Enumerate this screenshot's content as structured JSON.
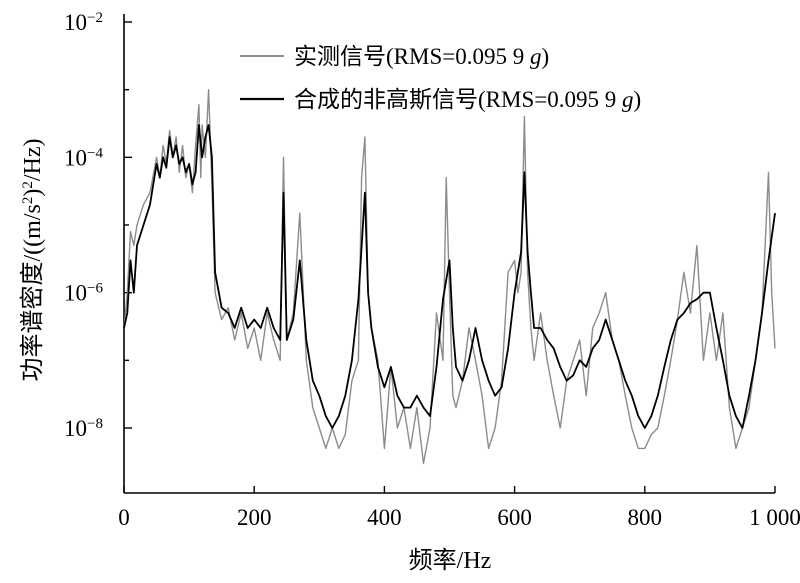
{
  "chart_data": {
    "type": "line",
    "xlabel": "频率/Hz",
    "ylabel": "功率谱密度/((m/s²)²/Hz)",
    "ylabel_parts": {
      "prefix": "功率谱密度/((m/s",
      "sup1": "2",
      "mid": ")",
      "sup2": "2",
      "suffix": "/Hz)"
    },
    "xlim": [
      0,
      1000
    ],
    "ylim": [
      1e-09,
      0.01
    ],
    "yscale": "log",
    "grid": false,
    "legend_position": "top-right",
    "x_ticks": [
      {
        "value": 0,
        "label": "0"
      },
      {
        "value": 200,
        "label": "200"
      },
      {
        "value": 400,
        "label": "400"
      },
      {
        "value": 600,
        "label": "600"
      },
      {
        "value": 800,
        "label": "800"
      },
      {
        "value": 1000,
        "label": "1 000"
      }
    ],
    "y_ticks": [
      {
        "value": 1e-08,
        "base": "10",
        "exp": "−8"
      },
      {
        "value": 1e-06,
        "base": "10",
        "exp": "−6"
      },
      {
        "value": 0.0001,
        "base": "10",
        "exp": "−4"
      },
      {
        "value": 0.01,
        "base": "10",
        "exp": "−2"
      }
    ],
    "series": [
      {
        "name": "实测信号(RMS=0.095 9 g)",
        "legend_parts": {
          "before": "实测信号(RMS=0.095 9 ",
          "italic": "g",
          "after": ")"
        },
        "color": "#8c8c8c",
        "x": [
          0,
          5,
          10,
          15,
          20,
          30,
          40,
          50,
          55,
          60,
          65,
          70,
          75,
          80,
          85,
          90,
          95,
          100,
          105,
          110,
          115,
          118,
          120,
          125,
          130,
          135,
          140,
          150,
          160,
          170,
          180,
          190,
          200,
          210,
          220,
          230,
          240,
          245,
          250,
          260,
          270,
          280,
          290,
          300,
          310,
          320,
          330,
          340,
          350,
          360,
          365,
          370,
          375,
          380,
          390,
          400,
          410,
          420,
          430,
          440,
          450,
          460,
          470,
          480,
          490,
          495,
          500,
          505,
          510,
          520,
          530,
          540,
          550,
          560,
          570,
          580,
          590,
          600,
          605,
          610,
          615,
          620,
          625,
          630,
          640,
          650,
          660,
          670,
          680,
          690,
          700,
          710,
          720,
          730,
          740,
          750,
          760,
          770,
          780,
          790,
          800,
          810,
          820,
          830,
          840,
          850,
          860,
          870,
          880,
          890,
          900,
          910,
          920,
          930,
          940,
          950,
          960,
          970,
          980,
          990,
          995,
          1000
        ],
        "y": [
          3e-07,
          1e-06,
          8e-06,
          5e-06,
          1e-05,
          2e-05,
          3e-05,
          0.0001,
          5e-05,
          0.00015,
          8e-05,
          0.00025,
          0.0001,
          0.0002,
          6e-05,
          0.00015,
          5e-05,
          8e-05,
          3e-05,
          0.00015,
          0.0006,
          5e-05,
          0.0003,
          0.0001,
          0.001,
          4e-05,
          1e-06,
          4e-07,
          6e-07,
          2e-07,
          5e-07,
          1.5e-07,
          3e-07,
          1e-07,
          5e-07,
          2e-07,
          1e-07,
          0.0001,
          2e-07,
          5e-07,
          1.5e-05,
          1e-07,
          2e-08,
          1e-08,
          5e-09,
          1e-08,
          5e-09,
          8e-09,
          5e-08,
          1e-07,
          5e-05,
          0.0002,
          1e-06,
          3e-07,
          1e-07,
          5e-09,
          8e-08,
          1e-08,
          2e-08,
          5e-09,
          2e-08,
          3e-09,
          1e-08,
          5e-07,
          1e-07,
          5e-05,
          1e-06,
          3e-08,
          2e-08,
          5e-08,
          3e-07,
          1e-07,
          3e-08,
          5e-09,
          1e-08,
          5e-08,
          2e-06,
          3e-06,
          1e-06,
          2e-06,
          0.0004,
          2e-06,
          3e-07,
          1e-07,
          5e-07,
          1e-07,
          3e-08,
          1e-08,
          5e-08,
          1e-07,
          2e-07,
          3e-08,
          3e-07,
          5e-07,
          1e-06,
          2e-07,
          1e-07,
          3e-08,
          1e-08,
          5e-09,
          5e-09,
          8e-09,
          1e-08,
          3e-08,
          1e-07,
          4e-07,
          2e-06,
          5e-07,
          5e-06,
          1e-07,
          5e-07,
          1e-07,
          5e-07,
          2e-08,
          5e-09,
          1e-08,
          2e-08,
          1e-07,
          5e-07,
          6e-05,
          1e-06,
          1.5e-07
        ]
      },
      {
        "name": "合成的非高斯信号(RMS=0.095 9 g)",
        "legend_parts": {
          "before": "合成的非高斯信号(RMS=0.095 9 ",
          "italic": "g",
          "after": ")"
        },
        "color": "#000000",
        "x": [
          0,
          5,
          10,
          15,
          20,
          30,
          40,
          50,
          55,
          60,
          65,
          70,
          75,
          80,
          85,
          90,
          95,
          100,
          105,
          110,
          115,
          120,
          125,
          130,
          135,
          140,
          150,
          160,
          170,
          180,
          190,
          200,
          210,
          220,
          230,
          240,
          245,
          250,
          260,
          270,
          280,
          290,
          300,
          310,
          320,
          330,
          340,
          350,
          360,
          370,
          375,
          380,
          390,
          400,
          410,
          420,
          430,
          440,
          450,
          460,
          470,
          480,
          490,
          500,
          505,
          510,
          520,
          530,
          540,
          550,
          560,
          570,
          580,
          590,
          600,
          610,
          615,
          620,
          625,
          630,
          640,
          650,
          660,
          670,
          680,
          690,
          700,
          710,
          720,
          730,
          740,
          750,
          760,
          770,
          780,
          790,
          800,
          810,
          820,
          830,
          840,
          850,
          860,
          870,
          880,
          890,
          900,
          910,
          920,
          930,
          940,
          950,
          960,
          970,
          980,
          990,
          1000
        ],
        "y": [
          3e-07,
          5e-07,
          3e-06,
          1e-06,
          5e-06,
          1e-05,
          2e-05,
          8e-05,
          5e-05,
          0.0001,
          7e-05,
          0.0002,
          0.0001,
          0.00015,
          8e-05,
          0.0001,
          6e-05,
          8e-05,
          4e-05,
          6e-05,
          0.0003,
          0.0001,
          0.0002,
          0.0003,
          0.0001,
          2e-06,
          6e-07,
          5e-07,
          3e-07,
          6e-07,
          3e-07,
          4e-07,
          3e-07,
          6e-07,
          3e-07,
          2e-07,
          3e-05,
          2e-07,
          4e-07,
          3e-06,
          2e-07,
          5e-08,
          3e-08,
          1.5e-08,
          1e-08,
          1.5e-08,
          3e-08,
          1e-07,
          8e-07,
          3e-05,
          1e-06,
          3e-07,
          8e-08,
          4e-08,
          8e-08,
          3e-08,
          2e-08,
          2e-08,
          3e-08,
          2e-08,
          1.5e-08,
          8e-08,
          8e-07,
          3e-06,
          3e-07,
          8e-08,
          5e-08,
          1e-07,
          3e-07,
          1e-07,
          5e-08,
          3e-08,
          4e-08,
          1.5e-07,
          1e-06,
          4e-06,
          6e-05,
          4e-06,
          1e-06,
          3e-07,
          3e-07,
          2e-07,
          1.5e-07,
          8e-08,
          5e-08,
          6e-08,
          1e-07,
          8e-08,
          1.5e-07,
          2e-07,
          4e-07,
          2e-07,
          1e-07,
          5e-08,
          3e-08,
          1.5e-08,
          1e-08,
          1.5e-08,
          3e-08,
          8e-08,
          2e-07,
          4e-07,
          5e-07,
          7e-07,
          8e-07,
          1e-06,
          1e-06,
          3e-07,
          1e-07,
          3e-08,
          1.5e-08,
          1e-08,
          3e-08,
          1e-07,
          5e-07,
          3e-06,
          1.5e-05
        ]
      }
    ]
  }
}
